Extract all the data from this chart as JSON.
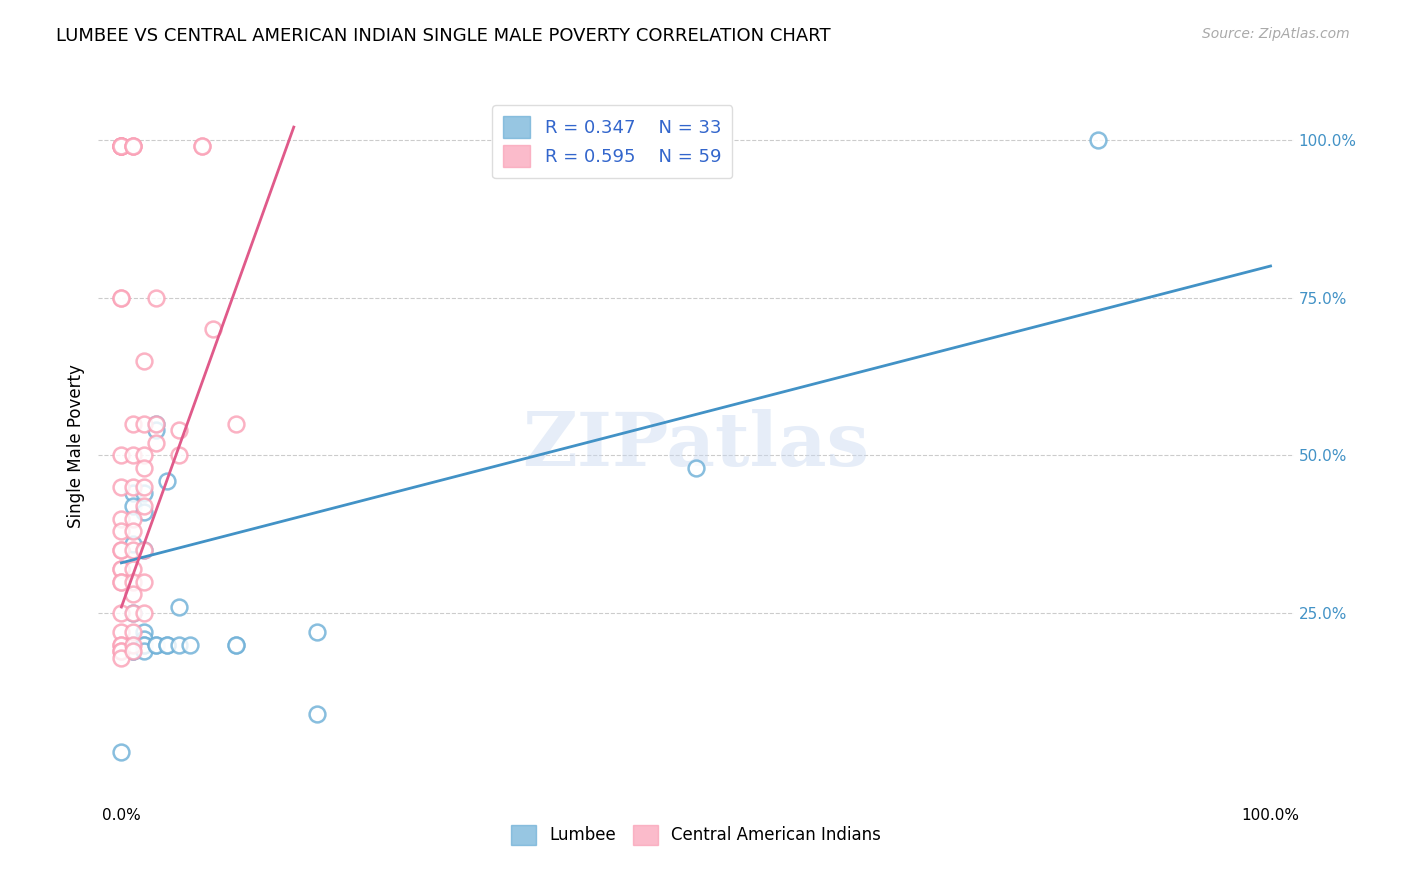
{
  "title": "LUMBEE VS CENTRAL AMERICAN INDIAN SINGLE MALE POVERTY CORRELATION CHART",
  "source": "Source: ZipAtlas.com",
  "ylabel": "Single Male Poverty",
  "lumbee_color": "#6baed6",
  "ca_color": "#fa9fb5",
  "lumbee_line_color": "#4292c6",
  "ca_line_color": "#e05a8a",
  "lumbee_r": "0.347",
  "lumbee_n": "33",
  "ca_r": "0.595",
  "ca_n": "59",
  "lumbee_points": [
    [
      0.0,
      0.03
    ],
    [
      0.01,
      0.44
    ],
    [
      0.01,
      0.42
    ],
    [
      0.01,
      0.36
    ],
    [
      0.01,
      0.25
    ],
    [
      0.01,
      0.2
    ],
    [
      0.01,
      0.2
    ],
    [
      0.01,
      0.19
    ],
    [
      0.01,
      0.19
    ],
    [
      0.02,
      0.44
    ],
    [
      0.02,
      0.41
    ],
    [
      0.02,
      0.35
    ],
    [
      0.02,
      0.22
    ],
    [
      0.02,
      0.21
    ],
    [
      0.02,
      0.2
    ],
    [
      0.02,
      0.2
    ],
    [
      0.02,
      0.19
    ],
    [
      0.03,
      0.55
    ],
    [
      0.03,
      0.54
    ],
    [
      0.03,
      0.2
    ],
    [
      0.03,
      0.2
    ],
    [
      0.04,
      0.46
    ],
    [
      0.04,
      0.2
    ],
    [
      0.04,
      0.2
    ],
    [
      0.05,
      0.26
    ],
    [
      0.05,
      0.2
    ],
    [
      0.06,
      0.2
    ],
    [
      0.1,
      0.2
    ],
    [
      0.1,
      0.2
    ],
    [
      0.17,
      0.22
    ],
    [
      0.17,
      0.09
    ],
    [
      0.5,
      0.48
    ],
    [
      0.85,
      1.0
    ]
  ],
  "ca_points": [
    [
      0.0,
      0.99
    ],
    [
      0.0,
      0.99
    ],
    [
      0.0,
      0.99
    ],
    [
      0.0,
      0.99
    ],
    [
      0.0,
      0.99
    ],
    [
      0.0,
      0.99
    ],
    [
      0.0,
      0.75
    ],
    [
      0.0,
      0.75
    ],
    [
      0.0,
      0.5
    ],
    [
      0.0,
      0.45
    ],
    [
      0.0,
      0.4
    ],
    [
      0.0,
      0.38
    ],
    [
      0.0,
      0.35
    ],
    [
      0.0,
      0.35
    ],
    [
      0.0,
      0.32
    ],
    [
      0.0,
      0.32
    ],
    [
      0.0,
      0.3
    ],
    [
      0.0,
      0.3
    ],
    [
      0.0,
      0.25
    ],
    [
      0.0,
      0.22
    ],
    [
      0.0,
      0.2
    ],
    [
      0.0,
      0.2
    ],
    [
      0.0,
      0.19
    ],
    [
      0.0,
      0.19
    ],
    [
      0.0,
      0.18
    ],
    [
      0.01,
      0.99
    ],
    [
      0.01,
      0.99
    ],
    [
      0.01,
      0.99
    ],
    [
      0.01,
      0.55
    ],
    [
      0.01,
      0.5
    ],
    [
      0.01,
      0.45
    ],
    [
      0.01,
      0.4
    ],
    [
      0.01,
      0.38
    ],
    [
      0.01,
      0.35
    ],
    [
      0.01,
      0.32
    ],
    [
      0.01,
      0.3
    ],
    [
      0.01,
      0.28
    ],
    [
      0.01,
      0.25
    ],
    [
      0.01,
      0.22
    ],
    [
      0.01,
      0.2
    ],
    [
      0.01,
      0.19
    ],
    [
      0.02,
      0.65
    ],
    [
      0.02,
      0.55
    ],
    [
      0.02,
      0.5
    ],
    [
      0.02,
      0.48
    ],
    [
      0.02,
      0.45
    ],
    [
      0.02,
      0.42
    ],
    [
      0.02,
      0.35
    ],
    [
      0.02,
      0.3
    ],
    [
      0.02,
      0.25
    ],
    [
      0.03,
      0.75
    ],
    [
      0.03,
      0.55
    ],
    [
      0.03,
      0.52
    ],
    [
      0.05,
      0.54
    ],
    [
      0.05,
      0.5
    ],
    [
      0.07,
      0.99
    ],
    [
      0.07,
      0.99
    ],
    [
      0.08,
      0.7
    ],
    [
      0.1,
      0.55
    ]
  ],
  "lumbee_regression": [
    0.0,
    0.33,
    1.0,
    0.8
  ],
  "ca_regression": [
    0.0,
    0.26,
    0.15,
    1.02
  ],
  "xlim": [
    -0.02,
    1.02
  ],
  "ylim": [
    -0.05,
    1.08
  ]
}
